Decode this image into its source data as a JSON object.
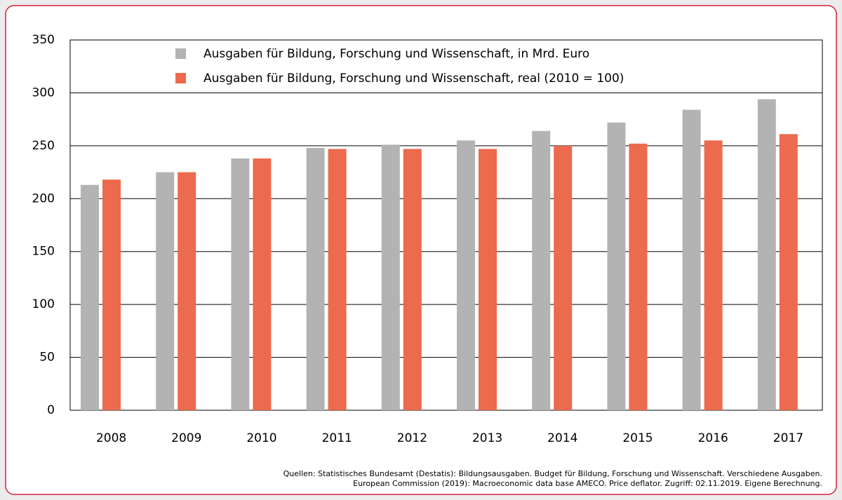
{
  "chart_data": {
    "type": "bar",
    "categories": [
      "2008",
      "2009",
      "2010",
      "2011",
      "2012",
      "2013",
      "2014",
      "2015",
      "2016",
      "2017"
    ],
    "series": [
      {
        "name": "Ausgaben für Bildung, Forschung und Wissenschaft, in Mrd. Euro",
        "color": "#b3b3b3",
        "values": [
          213,
          225,
          238,
          248,
          251,
          255,
          264,
          272,
          284,
          294
        ]
      },
      {
        "name": "Ausgaben für Bildung, Forschung und Wissenschaft, real (2010 = 100)",
        "color": "#ec6a4d",
        "values": [
          218,
          225,
          238,
          247,
          247,
          247,
          250,
          252,
          255,
          261
        ]
      }
    ],
    "ylim": [
      0,
      350
    ],
    "yticks": [
      0,
      50,
      100,
      150,
      200,
      250,
      300,
      350
    ],
    "grid": true,
    "legend": "top",
    "notes": [
      "Quellen: Statistisches Bundesamt (Destatis): Bildungsausgaben. Budget für Bildung, Forschung und Wissenschaft. Verschiedene Ausgaben.",
      "European Commission (2019): Macroeconomic data base AMECO. Price deflator. Zugriff: 02.11.2019. Eigene Berechnung."
    ]
  }
}
